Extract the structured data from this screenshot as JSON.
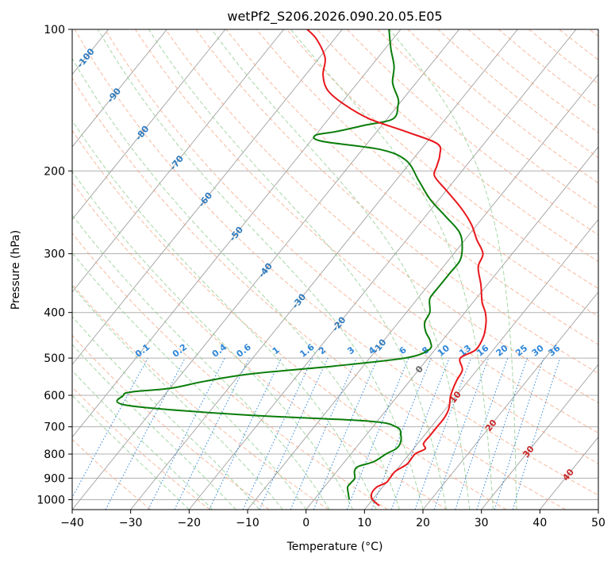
{
  "chart_data": {
    "type": "skew-t",
    "title": "wetPf2_S206.2026.090.20.05.E05",
    "xlabel": "Temperature (°C)",
    "ylabel": "Pressure (hPa)",
    "xlim": [
      -40,
      50
    ],
    "ylim": [
      1050,
      100
    ],
    "x_ticks": [
      "−40",
      "−30",
      "−20",
      "−10",
      "0",
      "10",
      "20",
      "30",
      "40",
      "50"
    ],
    "x_tick_values": [
      -40,
      -30,
      -20,
      -10,
      0,
      10,
      20,
      30,
      40,
      50
    ],
    "y_ticks": [
      "100",
      "200",
      "300",
      "400",
      "500",
      "600",
      "700",
      "800",
      "900",
      "1000"
    ],
    "y_tick_values": [
      100,
      200,
      300,
      400,
      500,
      600,
      700,
      800,
      900,
      1000
    ],
    "colors": {
      "temperature": "#e8161b",
      "dewpoint": "#0a7d0a",
      "dry_adiabat": "#f4a27e",
      "moist_adiabat": "#8fcc8f",
      "mixing_ratio": "#2f86d8",
      "isotherm": "#a0a0a0",
      "isotherm_label": "#2f7bbf",
      "dcape_label": "#c82828"
    },
    "isotherm_labels": [
      {
        "text": "-100",
        "t": -100,
        "p": 115
      },
      {
        "text": "-90",
        "t": -90,
        "p": 138
      },
      {
        "text": "-80",
        "t": -80,
        "p": 166
      },
      {
        "text": "-70",
        "t": -70,
        "p": 192
      },
      {
        "text": "-60",
        "t": -60,
        "p": 230
      },
      {
        "text": "-50",
        "t": -50,
        "p": 272
      },
      {
        "text": "-40",
        "t": -40,
        "p": 325
      },
      {
        "text": "-30",
        "t": -30,
        "p": 378
      },
      {
        "text": "-20",
        "t": -20,
        "p": 423
      },
      {
        "text": "-10",
        "t": -10,
        "p": 472
      },
      {
        "text": "0",
        "t": 0,
        "p": 528
      }
    ],
    "extra_labels": [
      {
        "text": "10",
        "t": 10,
        "p": 605
      },
      {
        "text": "20",
        "t": 20,
        "p": 695
      },
      {
        "text": "30",
        "t": 30,
        "p": 790
      },
      {
        "text": "40",
        "t": 40,
        "p": 885
      }
    ],
    "mixing_ratio_labels": [
      "0.1",
      "0.2",
      "0.4",
      "0.6",
      "1",
      "1.6",
      "2",
      "3",
      "4",
      "6",
      "8",
      "10",
      "13",
      "16",
      "20",
      "25",
      "30",
      "36"
    ],
    "mixing_ratio_values": [
      0.1,
      0.2,
      0.4,
      0.6,
      1,
      1.6,
      2,
      3,
      4,
      6,
      8,
      10,
      13,
      16,
      20,
      25,
      30,
      36
    ],
    "temperature_profile": [
      [
        1030,
        12.0
      ],
      [
        1000,
        10.0
      ],
      [
        970,
        9.0
      ],
      [
        940,
        9.0
      ],
      [
        920,
        10.0
      ],
      [
        900,
        10.0
      ],
      [
        870,
        10.0
      ],
      [
        840,
        11.0
      ],
      [
        800,
        11.0
      ],
      [
        780,
        12.0
      ],
      [
        760,
        11.0
      ],
      [
        730,
        11.0
      ],
      [
        700,
        11.0
      ],
      [
        670,
        11.0
      ],
      [
        640,
        10.5
      ],
      [
        600,
        9.0
      ],
      [
        560,
        8.0
      ],
      [
        530,
        7.5
      ],
      [
        500,
        5.5
      ],
      [
        480,
        7.0
      ],
      [
        450,
        6.5
      ],
      [
        420,
        5.0
      ],
      [
        400,
        3.5
      ],
      [
        380,
        1.5
      ],
      [
        350,
        -1.0
      ],
      [
        320,
        -4.0
      ],
      [
        300,
        -5.0
      ],
      [
        280,
        -8.0
      ],
      [
        260,
        -11.0
      ],
      [
        240,
        -15.0
      ],
      [
        220,
        -20.0
      ],
      [
        205,
        -24.0
      ],
      [
        195,
        -25.0
      ],
      [
        185,
        -26.0
      ],
      [
        175,
        -28.0
      ],
      [
        165,
        -35.0
      ],
      [
        155,
        -43.0
      ],
      [
        145,
        -49.0
      ],
      [
        135,
        -54.0
      ],
      [
        125,
        -57.0
      ],
      [
        115,
        -59.0
      ],
      [
        105,
        -63.0
      ],
      [
        100,
        -66.0
      ]
    ],
    "dewpoint_profile": [
      [
        1000,
        6.0
      ],
      [
        970,
        5.0
      ],
      [
        940,
        4.0
      ],
      [
        920,
        4.0
      ],
      [
        900,
        4.0
      ],
      [
        870,
        3.0
      ],
      [
        850,
        3.0
      ],
      [
        830,
        5.0
      ],
      [
        800,
        6.0
      ],
      [
        780,
        7.0
      ],
      [
        760,
        7.0
      ],
      [
        730,
        6.0
      ],
      [
        700,
        4.0
      ],
      [
        680,
        -2.0
      ],
      [
        660,
        -24.0
      ],
      [
        630,
        -45.0
      ],
      [
        600,
        -47.0
      ],
      [
        590,
        -46.0
      ],
      [
        580,
        -40.0
      ],
      [
        560,
        -35.0
      ],
      [
        540,
        -28.0
      ],
      [
        520,
        -15.0
      ],
      [
        500,
        -4.0
      ],
      [
        480,
        -1.0
      ],
      [
        460,
        -2.0
      ],
      [
        440,
        -4.0
      ],
      [
        420,
        -5.5
      ],
      [
        400,
        -6.0
      ],
      [
        380,
        -7.5
      ],
      [
        370,
        -8.0
      ],
      [
        350,
        -8.0
      ],
      [
        330,
        -8.0
      ],
      [
        310,
        -8.0
      ],
      [
        290,
        -9.5
      ],
      [
        270,
        -12.0
      ],
      [
        250,
        -16.5
      ],
      [
        230,
        -21.5
      ],
      [
        210,
        -26.0
      ],
      [
        190,
        -31.0
      ],
      [
        180,
        -37.0
      ],
      [
        173,
        -48.0
      ],
      [
        168,
        -50.0
      ],
      [
        165,
        -47.0
      ],
      [
        160,
        -43.0
      ],
      [
        155,
        -39.0
      ],
      [
        145,
        -40.0
      ],
      [
        140,
        -41.0
      ],
      [
        130,
        -44.0
      ],
      [
        120,
        -46.0
      ],
      [
        110,
        -49.0
      ],
      [
        100,
        -52.0
      ]
    ]
  }
}
